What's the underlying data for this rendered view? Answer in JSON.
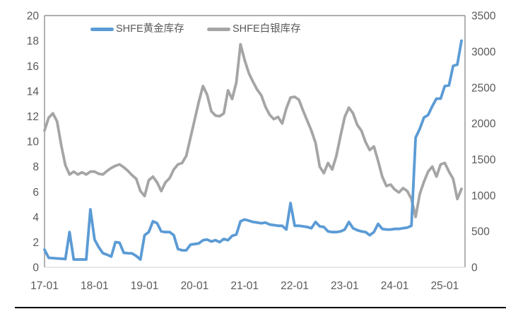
{
  "chart_data": {
    "type": "line",
    "title": "",
    "x_tick_labels": [
      "17-01",
      "18-01",
      "19-01",
      "20-01",
      "21-01",
      "22-01",
      "23-01",
      "24-01",
      "25-01"
    ],
    "x_range": [
      "2017-01",
      "2025-05"
    ],
    "x_unit": "month",
    "left_axis": {
      "min": 0,
      "max": 20,
      "ticks": [
        0,
        2,
        4,
        6,
        8,
        10,
        12,
        14,
        16,
        18,
        20
      ]
    },
    "right_axis": {
      "min": 0,
      "max": 3500,
      "ticks": [
        0,
        500,
        1000,
        1500,
        2000,
        2500,
        3000,
        3500
      ]
    },
    "grid": false,
    "legend_position": "top",
    "series": [
      {
        "key": "gold",
        "name": "SHFE黄金库存",
        "axis": "left",
        "color": "#5B9BD5",
        "values": [
          1.4,
          0.75,
          0.73,
          0.7,
          0.68,
          0.65,
          2.8,
          0.62,
          0.62,
          0.62,
          0.62,
          4.6,
          2.2,
          1.6,
          1.12,
          1.0,
          0.85,
          2.0,
          1.95,
          1.15,
          1.12,
          1.1,
          0.9,
          0.62,
          2.55,
          2.8,
          3.65,
          3.5,
          2.85,
          2.8,
          2.8,
          2.55,
          1.45,
          1.35,
          1.35,
          1.8,
          1.85,
          1.9,
          2.15,
          2.2,
          2.05,
          2.15,
          2.0,
          2.25,
          2.15,
          2.5,
          2.6,
          3.65,
          3.8,
          3.7,
          3.6,
          3.55,
          3.5,
          3.55,
          3.4,
          3.35,
          3.3,
          3.3,
          3.0,
          5.1,
          3.3,
          3.3,
          3.25,
          3.2,
          3.1,
          3.6,
          3.25,
          3.2,
          2.85,
          2.8,
          2.8,
          2.85,
          3.0,
          3.6,
          3.1,
          2.95,
          2.85,
          2.8,
          2.55,
          2.8,
          3.45,
          3.05,
          3.0,
          3.0,
          3.05,
          3.05,
          3.1,
          3.15,
          3.3,
          10.3,
          11.0,
          11.9,
          12.1,
          12.8,
          13.4,
          13.4,
          14.4,
          14.45,
          16.0,
          16.1,
          18.0
        ]
      },
      {
        "key": "silver",
        "name": "SHFE白银库存",
        "axis": "right",
        "color": "#A5A5A5",
        "values": [
          1900,
          2080,
          2140,
          2030,
          1700,
          1420,
          1290,
          1330,
          1290,
          1320,
          1290,
          1330,
          1330,
          1300,
          1290,
          1340,
          1380,
          1410,
          1430,
          1390,
          1340,
          1280,
          1230,
          1060,
          990,
          1210,
          1260,
          1180,
          1060,
          1180,
          1240,
          1360,
          1430,
          1450,
          1550,
          1800,
          2050,
          2300,
          2520,
          2400,
          2170,
          2110,
          2100,
          2140,
          2460,
          2340,
          2570,
          3100,
          2880,
          2700,
          2580,
          2470,
          2390,
          2230,
          2120,
          2060,
          2090,
          2000,
          2210,
          2360,
          2370,
          2330,
          2180,
          2040,
          1900,
          1730,
          1400,
          1310,
          1450,
          1360,
          1550,
          1830,
          2090,
          2220,
          2140,
          1980,
          1900,
          1740,
          1630,
          1680,
          1480,
          1260,
          1130,
          1150,
          1080,
          1040,
          1100,
          1060,
          950,
          700,
          1020,
          1190,
          1330,
          1400,
          1260,
          1430,
          1450,
          1330,
          1230,
          950,
          1090
        ]
      }
    ]
  },
  "colors": {
    "axis_line": "#7F7F7F",
    "baseline": "#D9D9D9",
    "tick_text": "#595959",
    "bottom_rule": "#000000"
  }
}
